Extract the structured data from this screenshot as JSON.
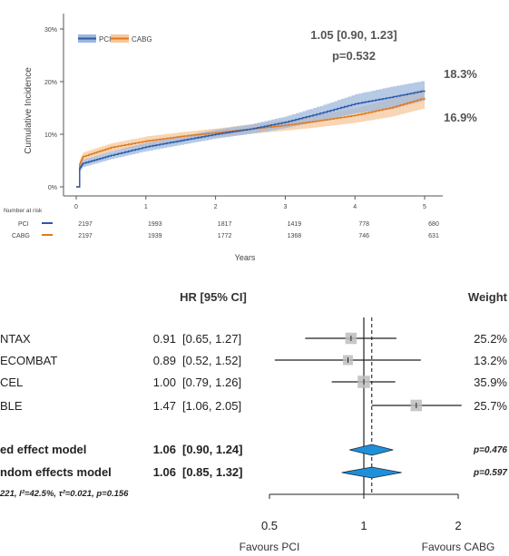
{
  "colors": {
    "pci": "#2a5aa8",
    "cabg": "#e07a1c",
    "pci_band": "#9db7dc",
    "cabg_band": "#f6c79b",
    "diamond": "#1f8fd8",
    "square": "#bdbdbd",
    "text": "#444444"
  },
  "km": {
    "ylabel": "Cumulative Incidence",
    "xlabel": "Years",
    "legend": {
      "pci": "PCI",
      "cabg": "CABG"
    },
    "hr_text": "1.05 [0.90, 1.23]",
    "p_text": "p=0.532",
    "end_label_pci": "18.3%",
    "end_label_cabg": "16.9%",
    "y_ticks": [
      "0%",
      "10%",
      "20%",
      "30%"
    ],
    "x_ticks": [
      "0",
      "1",
      "2",
      "3",
      "4",
      "5"
    ],
    "risk_title": "Number at risk",
    "risk_pci_label": "PCI",
    "risk_cabg_label": "CABG",
    "risk_pci": [
      "2197",
      "1993",
      "1817",
      "1419",
      "778",
      "680"
    ],
    "risk_cabg": [
      "2197",
      "1939",
      "1772",
      "1368",
      "746",
      "631"
    ]
  },
  "forest": {
    "hr_header": "HR [95% CI]",
    "weight_header": "Weight",
    "studies": [
      {
        "name": "NTAX",
        "hr": "0.91",
        "ci": "[0.65, 1.27]",
        "weight": "25.2%"
      },
      {
        "name": "ECOMBAT",
        "hr": "0.89",
        "ci": "[0.52, 1.52]",
        "weight": "13.2%"
      },
      {
        "name": "CEL",
        "hr": "1.00",
        "ci": "[0.79, 1.26]",
        "weight": "35.9%"
      },
      {
        "name": "BLE",
        "hr": "1.47",
        "ci": "[1.06, 2.05]",
        "weight": "25.7%"
      }
    ],
    "fixed": {
      "name": "ed effect model",
      "hr": "1.06",
      "ci": "[0.90, 1.24]",
      "p": "p=0.476"
    },
    "random": {
      "name": "ndom effects model",
      "hr": "1.06",
      "ci": "[0.85, 1.32]",
      "p": "p=0.597"
    },
    "heterogeneity": "221, I²=42.5%, τ²=0.021, p=0.156",
    "x_ticks": [
      "0.5",
      "1",
      "2"
    ],
    "favours_left": "Favours PCI",
    "favours_right": "Favours CABG"
  },
  "chart_data": [
    {
      "type": "line",
      "xlabel": "Years",
      "ylabel": "Cumulative Incidence",
      "xlim": [
        0,
        5
      ],
      "ylim": [
        0,
        30
      ],
      "legend": "top-left",
      "series": [
        {
          "name": "PCI",
          "x": [
            0,
            0.05,
            0.1,
            0.5,
            1,
            1.5,
            2,
            2.5,
            3,
            3.5,
            4,
            4.5,
            5
          ],
          "y": [
            0,
            3.5,
            4.5,
            6.0,
            7.6,
            8.8,
            10.0,
            11.0,
            12.3,
            14.0,
            15.8,
            17.0,
            18.3
          ],
          "ci_lower": [
            0,
            2.8,
            3.8,
            5.3,
            6.8,
            8.0,
            9.2,
            10.1,
            11.2,
            12.6,
            14.0,
            14.8,
            16.5
          ],
          "ci_upper": [
            0,
            4.2,
            5.2,
            6.8,
            8.4,
            9.6,
            10.9,
            11.9,
            13.4,
            15.4,
            17.6,
            19.0,
            20.2
          ]
        },
        {
          "name": "CABG",
          "x": [
            0,
            0.05,
            0.1,
            0.5,
            1,
            1.5,
            2,
            2.5,
            3,
            3.5,
            4,
            4.5,
            5
          ],
          "y": [
            0,
            4.3,
            5.8,
            7.5,
            8.7,
            9.6,
            10.3,
            11.0,
            11.7,
            12.6,
            13.6,
            15.0,
            16.9
          ],
          "ci_lower": [
            0,
            3.6,
            5.0,
            6.7,
            7.9,
            8.8,
            9.5,
            10.1,
            10.7,
            11.4,
            12.2,
            13.3,
            15.0
          ],
          "ci_upper": [
            0,
            5.0,
            6.6,
            8.3,
            9.6,
            10.4,
            11.1,
            11.9,
            12.7,
            13.8,
            15.0,
            16.7,
            18.8
          ]
        }
      ],
      "annotations": [
        "1.05 [0.90, 1.23]",
        "p=0.532",
        "18.3%",
        "16.9%"
      ]
    },
    {
      "type": "forest",
      "x_scale": "log",
      "x_ticks": [
        0.5,
        1,
        2
      ],
      "studies": [
        {
          "name": "NTAX",
          "hr": 0.91,
          "lower": 0.65,
          "upper": 1.27,
          "weight": 25.2
        },
        {
          "name": "ECOMBAT",
          "hr": 0.89,
          "lower": 0.52,
          "upper": 1.52,
          "weight": 13.2
        },
        {
          "name": "CEL",
          "hr": 1.0,
          "lower": 0.79,
          "upper": 1.26,
          "weight": 35.9
        },
        {
          "name": "BLE",
          "hr": 1.47,
          "lower": 1.06,
          "upper": 2.05,
          "weight": 25.7
        }
      ],
      "pooled": [
        {
          "name": "ed effect model",
          "hr": 1.06,
          "lower": 0.9,
          "upper": 1.24
        },
        {
          "name": "ndom effects model",
          "hr": 1.06,
          "lower": 0.85,
          "upper": 1.32
        }
      ]
    }
  ]
}
